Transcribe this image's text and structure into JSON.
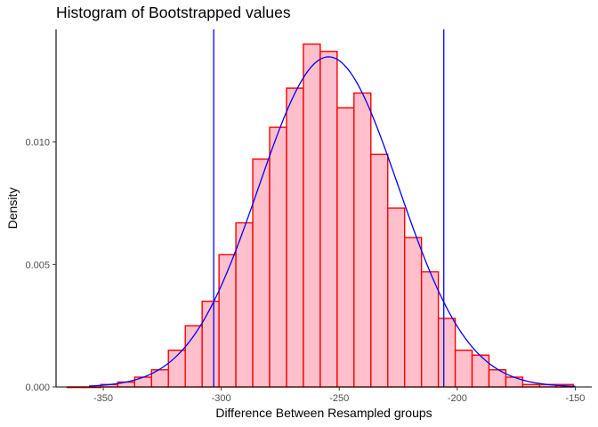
{
  "chart_data": {
    "type": "bar",
    "title": "Histogram of Bootstrapped values",
    "xlabel": "Difference Between Resampled groups",
    "ylabel": "Density",
    "xlim": [
      -370,
      -143
    ],
    "ylim": [
      0,
      0.0146
    ],
    "x_ticks": [
      -350,
      -300,
      -250,
      -200,
      -150
    ],
    "x_tick_labels": [
      "-350",
      "-300",
      "-250",
      "-200",
      "-150"
    ],
    "y_ticks": [
      0,
      0.005,
      0.01
    ],
    "y_tick_labels": [
      "0.000",
      "0.005",
      "0.010"
    ],
    "grid": false,
    "bin_width": 7.15,
    "bins": [
      {
        "x0": -365.3,
        "x1": -358.15,
        "density": 0.0
      },
      {
        "x0": -358.15,
        "x1": -351.0,
        "density": 0.0
      },
      {
        "x0": -351.0,
        "x1": -343.85,
        "density": 0.0001
      },
      {
        "x0": -343.85,
        "x1": -336.7,
        "density": 0.0002
      },
      {
        "x0": -336.7,
        "x1": -329.55,
        "density": 0.0004
      },
      {
        "x0": -329.55,
        "x1": -322.4,
        "density": 0.0007
      },
      {
        "x0": -322.4,
        "x1": -315.25,
        "density": 0.0015
      },
      {
        "x0": -315.25,
        "x1": -308.1,
        "density": 0.0025
      },
      {
        "x0": -308.1,
        "x1": -300.95,
        "density": 0.0035
      },
      {
        "x0": -300.95,
        "x1": -293.8,
        "density": 0.0054
      },
      {
        "x0": -293.8,
        "x1": -286.65,
        "density": 0.0067
      },
      {
        "x0": -286.65,
        "x1": -279.5,
        "density": 0.0093
      },
      {
        "x0": -279.5,
        "x1": -272.35,
        "density": 0.0106
      },
      {
        "x0": -272.35,
        "x1": -265.2,
        "density": 0.0122
      },
      {
        "x0": -265.2,
        "x1": -258.05,
        "density": 0.014
      },
      {
        "x0": -258.05,
        "x1": -250.9,
        "density": 0.0137
      },
      {
        "x0": -250.9,
        "x1": -243.75,
        "density": 0.0114
      },
      {
        "x0": -243.75,
        "x1": -236.6,
        "density": 0.012
      },
      {
        "x0": -236.6,
        "x1": -229.45,
        "density": 0.0095
      },
      {
        "x0": -229.45,
        "x1": -222.3,
        "density": 0.0073
      },
      {
        "x0": -222.3,
        "x1": -215.15,
        "density": 0.0061
      },
      {
        "x0": -215.15,
        "x1": -208.0,
        "density": 0.0047
      },
      {
        "x0": -208.0,
        "x1": -200.85,
        "density": 0.0028
      },
      {
        "x0": -200.85,
        "x1": -193.7,
        "density": 0.0015
      },
      {
        "x0": -193.7,
        "x1": -186.55,
        "density": 0.0013
      },
      {
        "x0": -186.55,
        "x1": -179.4,
        "density": 0.0007
      },
      {
        "x0": -179.4,
        "x1": -172.25,
        "density": 0.0004
      },
      {
        "x0": -172.25,
        "x1": -165.1,
        "density": 0.0001
      },
      {
        "x0": -165.1,
        "x1": -157.95,
        "density": 0.0001
      },
      {
        "x0": -157.95,
        "x1": -150.8,
        "density": 0.0001
      }
    ],
    "density_curve": {
      "type": "normal",
      "mean": -254.5,
      "sd": 29.6,
      "color": "#0000ff",
      "x_range": [
        -356,
        -150
      ]
    },
    "vlines": [
      {
        "x": -303.2,
        "color": "#0000ff"
      },
      {
        "x": -205.7,
        "color": "#0000ff"
      }
    ],
    "colors": {
      "bar_fill": "#ffc0cb",
      "bar_stroke": "#ff0000",
      "axis": "#000000"
    }
  }
}
